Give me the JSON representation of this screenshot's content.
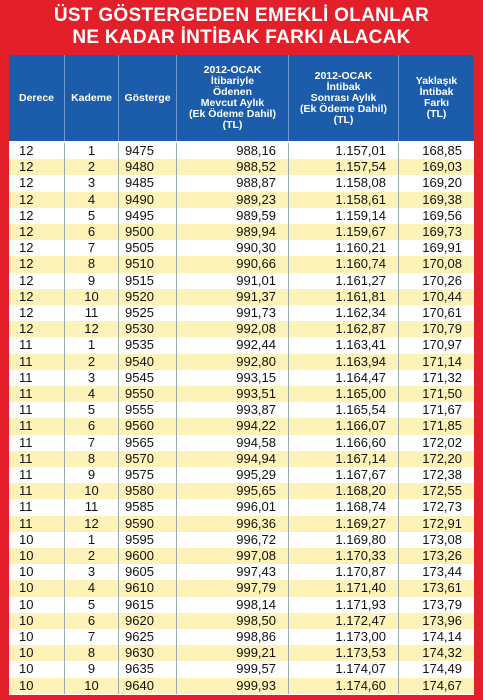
{
  "title": {
    "lines": [
      "ÜST GÖSTERGEDEN EMEKLİ OLANLAR",
      "NE KADAR İNTİBAK FARKI ALACAK"
    ]
  },
  "table": {
    "columns": [
      {
        "lines": [
          "Derece"
        ]
      },
      {
        "lines": [
          "Kademe"
        ]
      },
      {
        "lines": [
          "Gösterge"
        ]
      },
      {
        "lines": [
          "2012-OCAK",
          "İtibariyle",
          "Ödenen",
          "Mevcut Aylık",
          "(Ek Ödeme Dahil)",
          "(TL)"
        ]
      },
      {
        "lines": [
          "2012-OCAK",
          "İntibak",
          "Sonrası Aylık",
          "(Ek Ödeme Dahil)",
          "(TL)"
        ]
      },
      {
        "lines": [
          "Yaklaşık",
          "İntibak",
          "Farkı",
          "(TL)"
        ]
      }
    ],
    "rows": [
      [
        "12",
        "1",
        "9475",
        "988,16",
        "1.157,01",
        "168,85"
      ],
      [
        "12",
        "2",
        "9480",
        "988,52",
        "1.157,54",
        "169,03"
      ],
      [
        "12",
        "3",
        "9485",
        "988,87",
        "1.158,08",
        "169,20"
      ],
      [
        "12",
        "4",
        "9490",
        "989,23",
        "1.158,61",
        "169,38"
      ],
      [
        "12",
        "5",
        "9495",
        "989,59",
        "1.159,14",
        "169,56"
      ],
      [
        "12",
        "6",
        "9500",
        "989,94",
        "1.159,67",
        "169,73"
      ],
      [
        "12",
        "7",
        "9505",
        "990,30",
        "1.160,21",
        "169,91"
      ],
      [
        "12",
        "8",
        "9510",
        "990,66",
        "1.160,74",
        "170,08"
      ],
      [
        "12",
        "9",
        "9515",
        "991,01",
        "1.161,27",
        "170,26"
      ],
      [
        "12",
        "10",
        "9520",
        "991,37",
        "1.161,81",
        "170,44"
      ],
      [
        "12",
        "11",
        "9525",
        "991,73",
        "1.162,34",
        "170,61"
      ],
      [
        "12",
        "12",
        "9530",
        "992,08",
        "1.162,87",
        "170,79"
      ],
      [
        "11",
        "1",
        "9535",
        "992,44",
        "1.163,41",
        "170,97"
      ],
      [
        "11",
        "2",
        "9540",
        "992,80",
        "1.163,94",
        "171,14"
      ],
      [
        "11",
        "3",
        "9545",
        "993,15",
        "1.164,47",
        "171,32"
      ],
      [
        "11",
        "4",
        "9550",
        "993,51",
        "1.165,00",
        "171,50"
      ],
      [
        "11",
        "5",
        "9555",
        "993,87",
        "1.165,54",
        "171,67"
      ],
      [
        "11",
        "6",
        "9560",
        "994,22",
        "1.166,07",
        "171,85"
      ],
      [
        "11",
        "7",
        "9565",
        "994,58",
        "1.166,60",
        "172,02"
      ],
      [
        "11",
        "8",
        "9570",
        "994,94",
        "1.167,14",
        "172,20"
      ],
      [
        "11",
        "9",
        "9575",
        "995,29",
        "1.167,67",
        "172,38"
      ],
      [
        "11",
        "10",
        "9580",
        "995,65",
        "1.168,20",
        "172,55"
      ],
      [
        "11",
        "11",
        "9585",
        "996,01",
        "1.168,74",
        "172,73"
      ],
      [
        "11",
        "12",
        "9590",
        "996,36",
        "1.169,27",
        "172,91"
      ],
      [
        "10",
        "1",
        "9595",
        "996,72",
        "1.169,80",
        "173,08"
      ],
      [
        "10",
        "2",
        "9600",
        "997,08",
        "1.170,33",
        "173,26"
      ],
      [
        "10",
        "3",
        "9605",
        "997,43",
        "1.170,87",
        "173,44"
      ],
      [
        "10",
        "4",
        "9610",
        "997,79",
        "1.171,40",
        "173,61"
      ],
      [
        "10",
        "5",
        "9615",
        "998,14",
        "1.171,93",
        "173,79"
      ],
      [
        "10",
        "6",
        "9620",
        "998,50",
        "1.172,47",
        "173,96"
      ],
      [
        "10",
        "7",
        "9625",
        "998,86",
        "1.173,00",
        "174,14"
      ],
      [
        "10",
        "8",
        "9630",
        "999,21",
        "1.173,53",
        "174,32"
      ],
      [
        "10",
        "9",
        "9635",
        "999,57",
        "1.174,07",
        "174,49"
      ],
      [
        "10",
        "10",
        "9640",
        "999,93",
        "1.174,60",
        "174,67"
      ]
    ]
  }
}
